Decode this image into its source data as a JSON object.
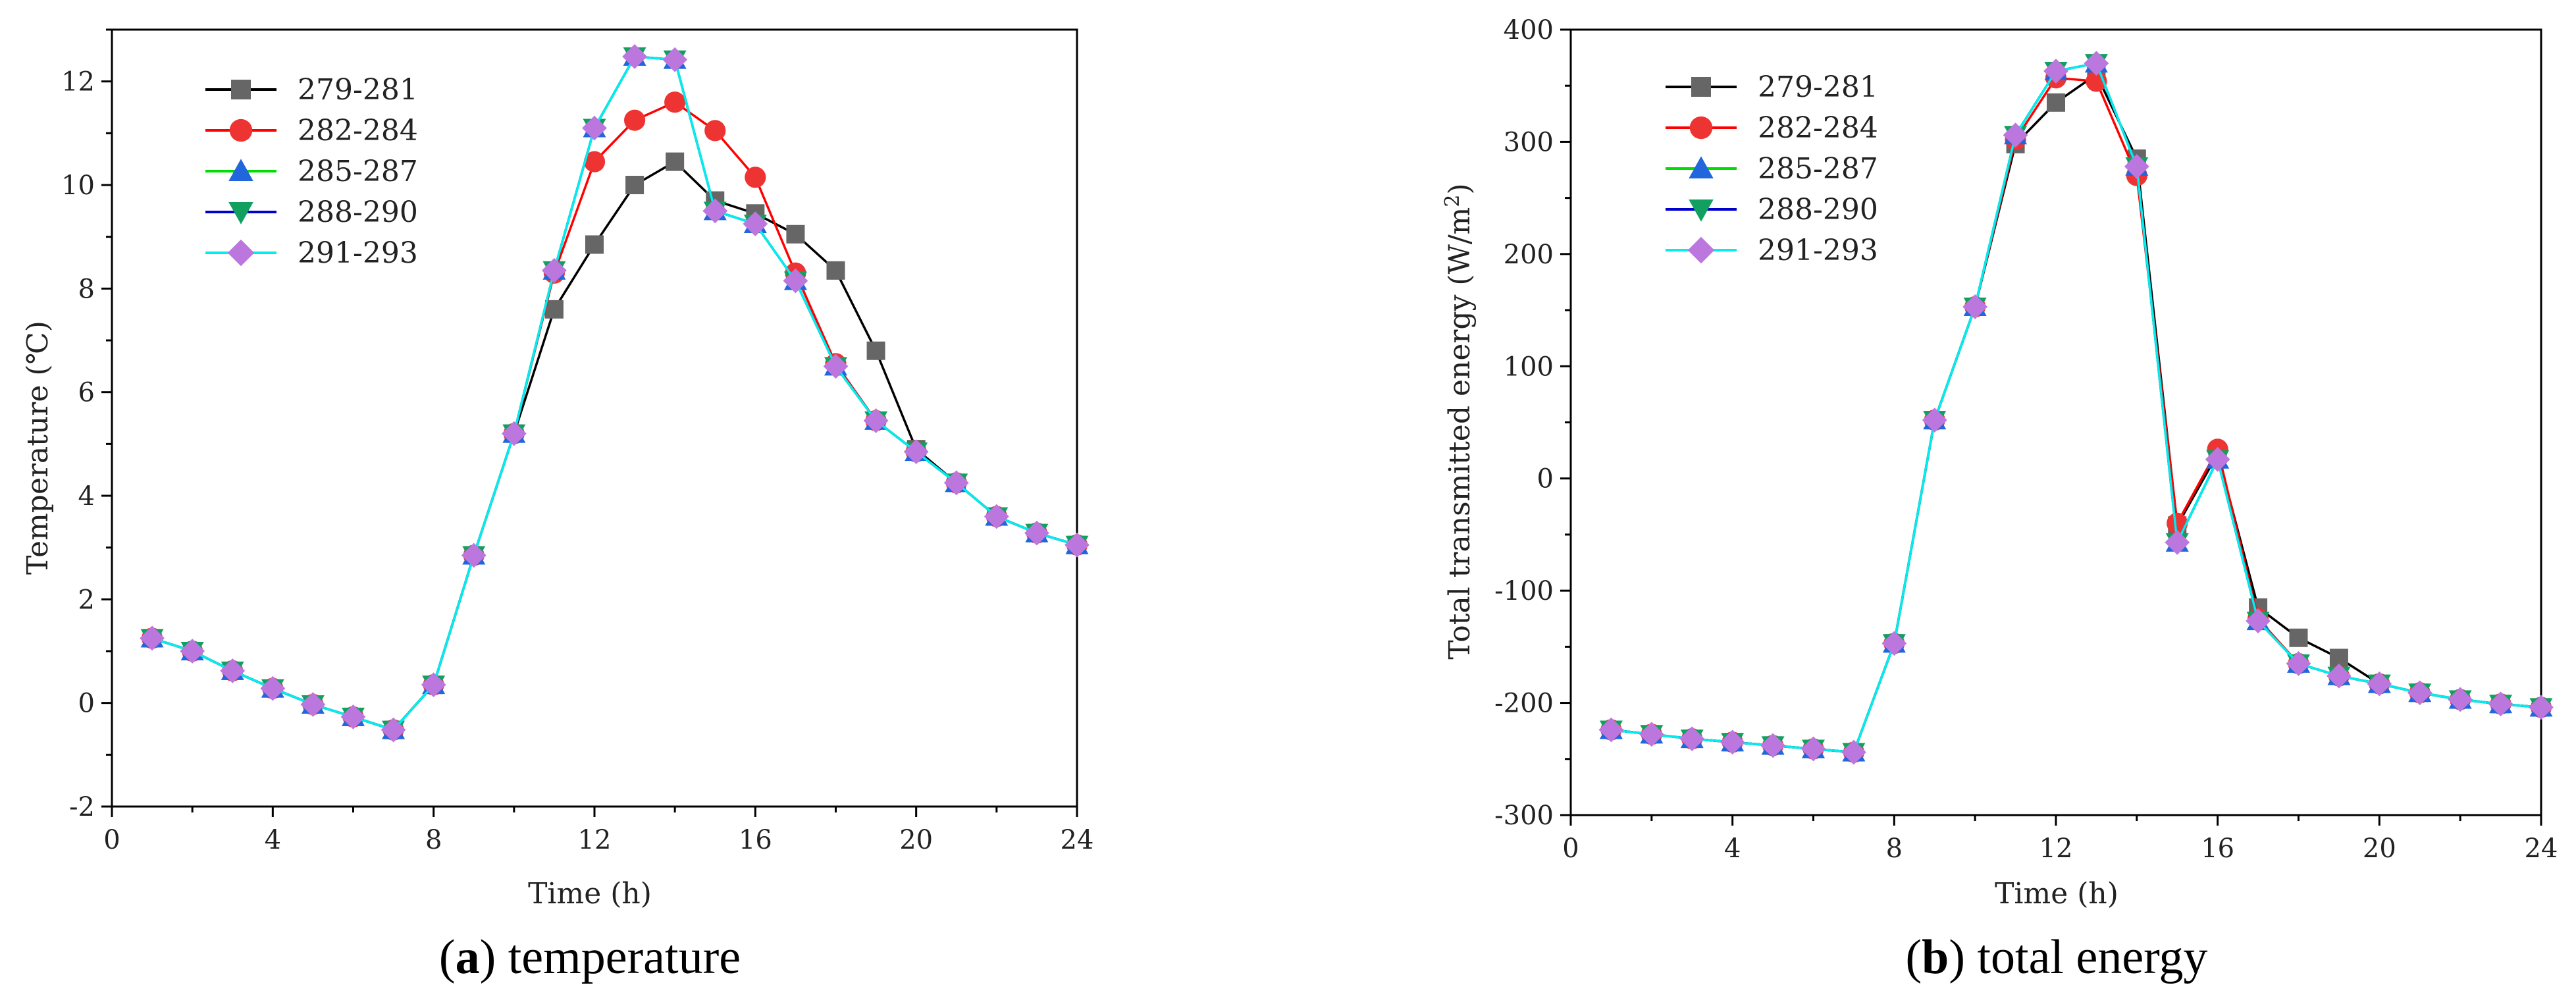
{
  "chart_data": [
    {
      "type": "line",
      "caption": {
        "open": "(",
        "letter": "a",
        "close": ")",
        "text": " temperature"
      },
      "xlabel": "Time (h)",
      "ylabel": "Temperature (℃)",
      "xlim": [
        0,
        24
      ],
      "ylim": [
        -2,
        13
      ],
      "xticks": [
        0,
        4,
        8,
        12,
        16,
        20,
        24
      ],
      "yticks": [
        -2,
        0,
        2,
        4,
        6,
        8,
        10,
        12
      ],
      "x": [
        1,
        2,
        3,
        4,
        5,
        6,
        7,
        8,
        9,
        10,
        11,
        12,
        13,
        14,
        15,
        16,
        17,
        18,
        19,
        20,
        21,
        22,
        23,
        24
      ],
      "series": [
        {
          "name": "279-281",
          "color": "#000000",
          "marker_color": "#666666",
          "marker": "square",
          "values": [
            1.25,
            1.0,
            0.62,
            0.28,
            -0.03,
            -0.27,
            -0.52,
            0.35,
            2.85,
            5.2,
            7.6,
            8.85,
            10.0,
            10.45,
            9.7,
            9.45,
            9.05,
            8.35,
            6.8,
            4.9,
            4.25,
            3.6,
            3.28,
            3.05
          ]
        },
        {
          "name": "282-284",
          "color": "#ff0000",
          "marker_color": "#ee3333",
          "marker": "circle",
          "values": [
            1.25,
            1.0,
            0.62,
            0.28,
            -0.03,
            -0.27,
            -0.52,
            0.35,
            2.85,
            5.2,
            8.3,
            10.45,
            11.25,
            11.6,
            11.05,
            10.15,
            8.3,
            6.55,
            5.45,
            4.85,
            4.25,
            3.6,
            3.28,
            3.05
          ]
        },
        {
          "name": "285-287",
          "color": "#00dd00",
          "marker_color": "#2266dd",
          "marker": "triangle-up",
          "values": [
            1.25,
            1.0,
            0.62,
            0.28,
            -0.03,
            -0.27,
            -0.52,
            0.35,
            2.85,
            5.2,
            8.35,
            11.1,
            12.48,
            12.42,
            9.5,
            9.25,
            8.15,
            6.5,
            5.45,
            4.85,
            4.25,
            3.6,
            3.28,
            3.05
          ]
        },
        {
          "name": "288-290",
          "color": "#0000cc",
          "marker_color": "#11a060",
          "marker": "triangle-down",
          "values": [
            1.25,
            1.0,
            0.62,
            0.28,
            -0.03,
            -0.27,
            -0.52,
            0.35,
            2.85,
            5.2,
            8.35,
            11.1,
            12.48,
            12.42,
            9.5,
            9.25,
            8.15,
            6.5,
            5.45,
            4.85,
            4.25,
            3.6,
            3.28,
            3.05
          ]
        },
        {
          "name": "291-293",
          "color": "#00eeee",
          "marker_color": "#bb77dd",
          "marker": "diamond",
          "values": [
            1.25,
            1.0,
            0.62,
            0.28,
            -0.03,
            -0.27,
            -0.52,
            0.35,
            2.85,
            5.2,
            8.35,
            11.1,
            12.48,
            12.42,
            9.5,
            9.25,
            8.15,
            6.5,
            5.45,
            4.85,
            4.25,
            3.6,
            3.28,
            3.05
          ]
        }
      ]
    },
    {
      "type": "line",
      "caption": {
        "open": "(",
        "letter": "b",
        "close": ")",
        "text": " total energy"
      },
      "xlabel": "Time (h)",
      "ylabel": "Total transmitted energy (W/m",
      "ylabel_sup": "2",
      "ylabel_end": ")",
      "xlim": [
        0,
        24
      ],
      "ylim": [
        -300,
        400
      ],
      "xticks": [
        0,
        4,
        8,
        12,
        16,
        20,
        24
      ],
      "yticks": [
        -300,
        -200,
        -100,
        0,
        100,
        200,
        300,
        400
      ],
      "x": [
        1,
        2,
        3,
        4,
        5,
        6,
        7,
        8,
        9,
        10,
        11,
        12,
        13,
        14,
        15,
        16,
        17,
        18,
        19,
        20,
        21,
        22,
        23,
        24
      ],
      "series": [
        {
          "name": "279-281",
          "color": "#000000",
          "marker_color": "#666666",
          "marker": "square",
          "values": [
            -224,
            -228,
            -232,
            -235,
            -238,
            -241,
            -244,
            -147,
            52,
            153,
            298,
            335,
            360,
            285,
            -42,
            22,
            -115,
            -142,
            -160,
            -183,
            -191,
            -197,
            -201,
            -204
          ]
        },
        {
          "name": "282-284",
          "color": "#ff0000",
          "marker_color": "#ee3333",
          "marker": "circle",
          "values": [
            -224,
            -228,
            -232,
            -235,
            -238,
            -241,
            -244,
            -147,
            52,
            153,
            302,
            357,
            354,
            270,
            -40,
            26,
            -125,
            -165,
            -176,
            -183,
            -191,
            -197,
            -201,
            -204
          ]
        },
        {
          "name": "285-287",
          "color": "#00dd00",
          "marker_color": "#2266dd",
          "marker": "triangle-up",
          "values": [
            -224,
            -228,
            -232,
            -235,
            -238,
            -241,
            -244,
            -147,
            52,
            153,
            306,
            363,
            370,
            278,
            -57,
            17,
            -127,
            -165,
            -176,
            -183,
            -191,
            -197,
            -201,
            -204
          ]
        },
        {
          "name": "288-290",
          "color": "#0000cc",
          "marker_color": "#11a060",
          "marker": "triangle-down",
          "values": [
            -224,
            -228,
            -232,
            -235,
            -238,
            -241,
            -244,
            -147,
            52,
            153,
            306,
            363,
            370,
            278,
            -57,
            17,
            -127,
            -165,
            -176,
            -183,
            -191,
            -197,
            -201,
            -204
          ]
        },
        {
          "name": "291-293",
          "color": "#00eeee",
          "marker_color": "#bb77dd",
          "marker": "diamond",
          "values": [
            -224,
            -228,
            -232,
            -235,
            -238,
            -241,
            -244,
            -147,
            52,
            153,
            306,
            363,
            370,
            278,
            -57,
            17,
            -127,
            -165,
            -176,
            -183,
            -191,
            -197,
            -201,
            -204
          ]
        }
      ]
    }
  ]
}
